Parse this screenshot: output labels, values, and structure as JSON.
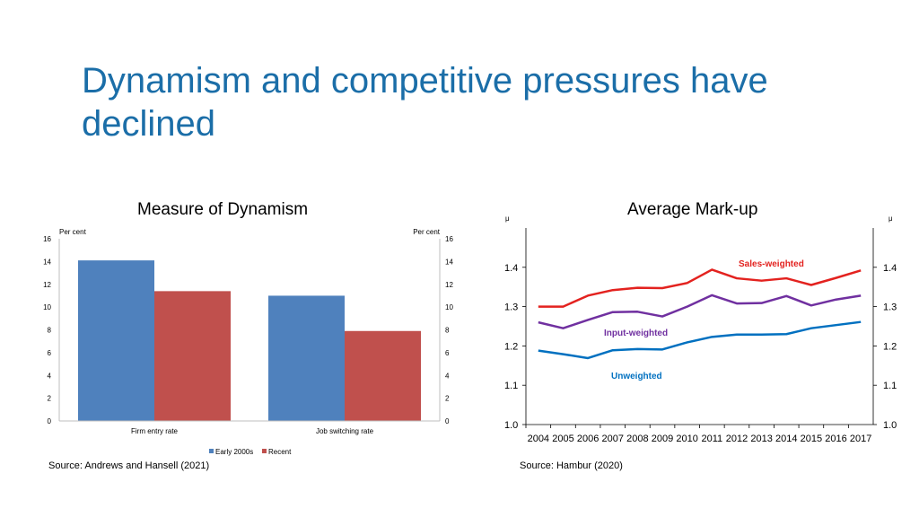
{
  "slide": {
    "title": "Dynamism and competitive pressures have declined"
  },
  "colors": {
    "title": "#1b6ea8",
    "early": "#4f81bd",
    "recent": "#c0504d",
    "sales": "#e3221f",
    "input": "#7030a0",
    "unweighted": "#0070c0"
  },
  "chart_data": [
    {
      "type": "bar",
      "title": "Measure of Dynamism",
      "unit_left": "Per cent",
      "unit_right": "Per cent",
      "categories": [
        "Firm entry rate",
        "Job switching rate"
      ],
      "series": [
        {
          "name": "Early 2000s",
          "values": [
            14.1,
            11.0
          ]
        },
        {
          "name": "Recent",
          "values": [
            11.4,
            7.9
          ]
        }
      ],
      "yticks": [
        "0",
        "2",
        "4",
        "6",
        "8",
        "10",
        "12",
        "14",
        "16"
      ],
      "ylim": [
        0,
        16
      ],
      "source": "Source: Andrews and Hansell (2021)"
    },
    {
      "type": "line",
      "title": "Average Mark-up",
      "unit_left": "μ",
      "unit_right": "μ",
      "x": [
        "2004",
        "2005",
        "2006",
        "2007",
        "2008",
        "2009",
        "2010",
        "2011",
        "2012",
        "2013",
        "2014",
        "2015",
        "2016",
        "2017"
      ],
      "series": [
        {
          "name": "Sales-weighted",
          "label": "Sales-weighted",
          "values": [
            1.3,
            1.3,
            1.328,
            1.342,
            1.348,
            1.347,
            1.36,
            1.394,
            1.372,
            1.366,
            1.372,
            1.355,
            1.373,
            1.392
          ]
        },
        {
          "name": "Input-weighted",
          "label": "Input-weighted",
          "values": [
            1.26,
            1.245,
            1.266,
            1.286,
            1.287,
            1.275,
            1.3,
            1.329,
            1.308,
            1.309,
            1.327,
            1.303,
            1.318,
            1.328
          ]
        },
        {
          "name": "Unweighted",
          "label": "Unweighted",
          "values": [
            1.188,
            1.179,
            1.169,
            1.189,
            1.192,
            1.191,
            1.209,
            1.223,
            1.229,
            1.229,
            1.23,
            1.245,
            1.253,
            1.261
          ]
        }
      ],
      "yticks": [
        "1.0",
        "1.1",
        "1.2",
        "1.3",
        "1.4"
      ],
      "ylim": [
        1.0,
        1.5
      ],
      "source": "Source: Hambur (2020)"
    }
  ]
}
